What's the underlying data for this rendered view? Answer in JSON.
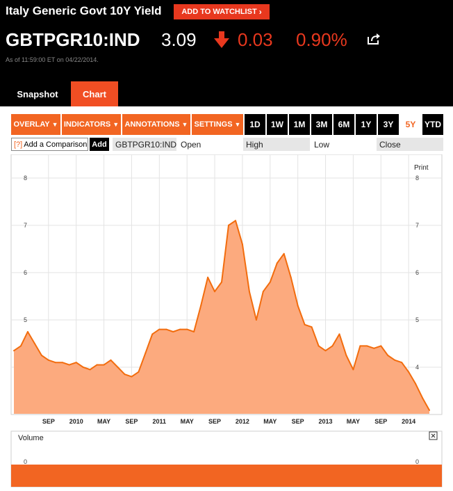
{
  "security": {
    "name": "Italy Generic Govt 10Y Yield",
    "watchlist_label": "ADD TO WATCHLIST",
    "ticker": "GBTPGR10:IND",
    "price": "3.09",
    "change": "0.03",
    "change_pct": "0.90%",
    "as_of": "As of 11:59:00 ET on 04/22/2014."
  },
  "tabs": [
    "Snapshot",
    "Chart"
  ],
  "toolbar": {
    "menus": [
      "OVERLAY",
      "INDICATORS",
      "ANNOTATIONS",
      "SETTINGS"
    ],
    "periods": [
      "1D",
      "1W",
      "1M",
      "3M",
      "6M",
      "1Y",
      "3Y",
      "5Y",
      "YTD"
    ],
    "active_period": "5Y"
  },
  "comparison": {
    "help_mark": "[?]",
    "placeholder": "Add a Comparison",
    "add_label": "Add",
    "ticker": "GBTPGR10:IND",
    "fields": [
      "Open",
      "High",
      "Low",
      "Close"
    ]
  },
  "colors": {
    "accent": "#f26522",
    "down": "#e8381e",
    "area_fill": "#fcaa7e",
    "line": "#f26c0d"
  },
  "chart_data": {
    "type": "area",
    "print_label": "Print",
    "x_tick_labels": [
      "SEP",
      "2010",
      "MAY",
      "SEP",
      "2011",
      "MAY",
      "SEP",
      "2012",
      "MAY",
      "SEP",
      "2013",
      "MAY",
      "SEP",
      "2014"
    ],
    "x_ticks": [
      "2009-09",
      "2010-01",
      "2010-05",
      "2010-09",
      "2011-01",
      "2011-05",
      "2011-09",
      "2012-01",
      "2012-05",
      "2012-09",
      "2013-01",
      "2013-05",
      "2013-09",
      "2014-01"
    ],
    "y_ticks": [
      4,
      5,
      6,
      7,
      8
    ],
    "ylim": [
      3.0,
      8.5
    ],
    "xlim": [
      "2009-04",
      "2014-05"
    ],
    "grid": true,
    "series": [
      {
        "x": [
          "2009-04",
          "2009-05",
          "2009-06",
          "2009-07",
          "2009-08",
          "2009-09",
          "2009-10",
          "2009-11",
          "2009-12",
          "2010-01",
          "2010-02",
          "2010-03",
          "2010-04",
          "2010-05",
          "2010-06",
          "2010-07",
          "2010-08",
          "2010-09",
          "2010-10",
          "2010-11",
          "2010-12",
          "2011-01",
          "2011-02",
          "2011-03",
          "2011-04",
          "2011-05",
          "2011-06",
          "2011-07",
          "2011-08",
          "2011-09",
          "2011-10",
          "2011-11",
          "2011-12",
          "2012-01",
          "2012-02",
          "2012-03",
          "2012-04",
          "2012-05",
          "2012-06",
          "2012-07",
          "2012-08",
          "2012-09",
          "2012-10",
          "2012-11",
          "2012-12",
          "2013-01",
          "2013-02",
          "2013-03",
          "2013-04",
          "2013-05",
          "2013-06",
          "2013-07",
          "2013-08",
          "2013-09",
          "2013-10",
          "2013-11",
          "2013-12",
          "2014-01",
          "2014-02",
          "2014-03",
          "2014-04"
        ],
        "y": [
          4.35,
          4.45,
          4.75,
          4.5,
          4.25,
          4.15,
          4.1,
          4.1,
          4.05,
          4.1,
          4.0,
          3.95,
          4.05,
          4.05,
          4.15,
          4.0,
          3.85,
          3.8,
          3.9,
          4.3,
          4.7,
          4.8,
          4.8,
          4.75,
          4.8,
          4.8,
          4.75,
          5.3,
          5.9,
          5.6,
          5.8,
          7.0,
          7.1,
          6.6,
          5.6,
          5.0,
          5.6,
          5.8,
          6.2,
          6.4,
          5.9,
          5.3,
          4.9,
          4.85,
          4.45,
          4.35,
          4.45,
          4.7,
          4.25,
          3.95,
          4.45,
          4.45,
          4.4,
          4.45,
          4.25,
          4.15,
          4.1,
          3.9,
          3.65,
          3.35,
          3.09
        ]
      }
    ],
    "volume": {
      "label": "Volume",
      "y_tick": "0"
    }
  }
}
